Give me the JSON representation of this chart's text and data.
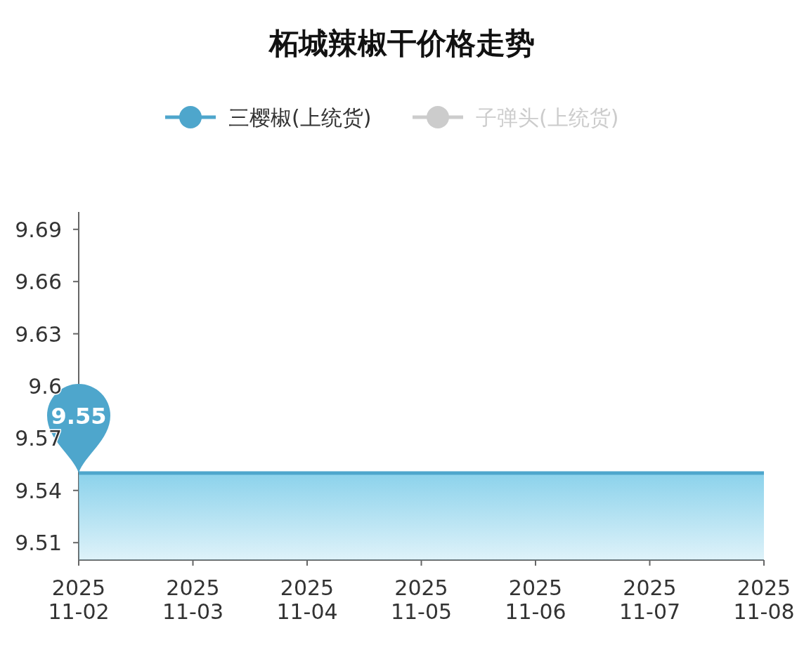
{
  "chart_data": {
    "type": "area",
    "title": "柘城辣椒干价格走势",
    "categories": [
      "2025\n11-02",
      "2025\n11-03",
      "2025\n11-04",
      "2025\n11-05",
      "2025\n11-06",
      "2025\n11-07",
      "2025\n11-08"
    ],
    "series": [
      {
        "name": "三樱椒(上统货)",
        "color": "#4ea6cc",
        "values": [
          9.55,
          9.55,
          9.55,
          9.55,
          9.55,
          9.55,
          9.55
        ]
      },
      {
        "name": "子弹头(上统货)",
        "color": "#cccccc",
        "values": [
          null,
          null,
          null,
          null,
          null,
          null,
          null
        ]
      }
    ],
    "ylim": [
      9.5,
      9.7
    ],
    "yticks": [
      9.51,
      9.54,
      9.57,
      9.6,
      9.63,
      9.66,
      9.69
    ],
    "annotations": [
      {
        "text": "9.55",
        "x": "2025\n11-02",
        "y": 9.55
      }
    ],
    "legend": "top",
    "grid": false,
    "marker": "none"
  }
}
